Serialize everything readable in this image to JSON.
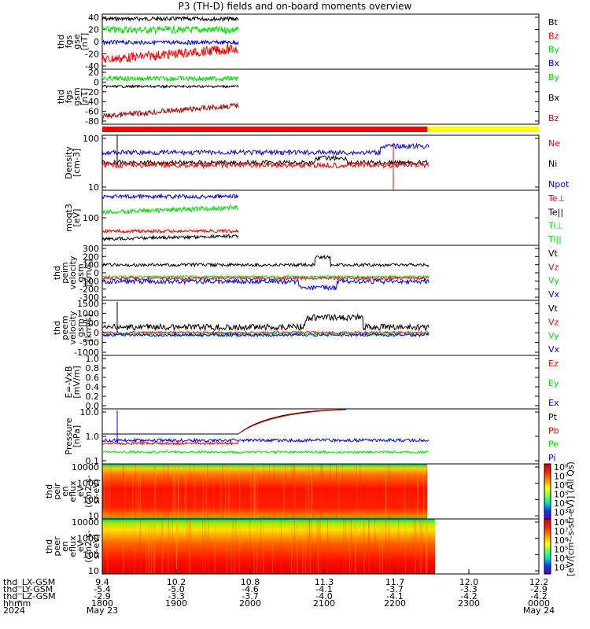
{
  "title": "P3 (TH-D) fields and on-board moments overview",
  "colors": {
    "black": "#000000",
    "red": "#ff0000",
    "darkred": "#a01010",
    "green": "#00e000",
    "blue": "#0000ff",
    "yellow": "#ffff00",
    "bar_red": "#ff0000"
  },
  "chart_data": [
    {
      "type": "line",
      "name": "fgs_gse",
      "ylabel": [
        "thd",
        "fgs",
        "gse",
        "[nT]"
      ],
      "yticks": [
        "40",
        "20",
        "0",
        "-20",
        "-40"
      ],
      "series": [
        {
          "name": "Bt",
          "color": "black",
          "values": [
            40,
            38,
            37,
            36,
            38,
            40
          ]
        },
        {
          "name": "Bz",
          "color": "red",
          "values": [
            -20,
            -28,
            -25,
            -18,
            -10,
            -2
          ]
        },
        {
          "name": "By",
          "color": "green",
          "values": [
            22,
            25,
            20,
            15,
            20,
            25
          ]
        },
        {
          "name": "Bx",
          "color": "blue",
          "values": [
            2,
            3,
            5,
            3,
            4,
            5
          ]
        }
      ],
      "legend": [
        {
          "t": "Bt",
          "c": "black"
        },
        {
          "t": "Bz",
          "c": "red"
        },
        {
          "t": "By",
          "c": "green"
        },
        {
          "t": "Bx",
          "c": "blue"
        }
      ]
    },
    {
      "type": "line",
      "name": "fgs_gsm",
      "ylabel": [
        "thd",
        "fgs",
        "gsm",
        "[nT]"
      ],
      "yticks": [
        "20",
        "0",
        "-20",
        "-40",
        "-60",
        "-80"
      ],
      "series": [
        {
          "name": "By",
          "color": "green",
          "values": [
            15,
            12,
            14,
            16,
            18
          ]
        },
        {
          "name": "Bx",
          "color": "black",
          "values": [
            2,
            1,
            0,
            2,
            3
          ]
        },
        {
          "name": "Bz",
          "color": "darkred",
          "values": [
            -82,
            -80,
            -78,
            -72,
            -62
          ]
        }
      ],
      "legend": [
        {
          "t": "By",
          "c": "green"
        },
        {
          "t": "Bx",
          "c": "black"
        },
        {
          "t": "Bz",
          "c": "darkred"
        }
      ]
    },
    {
      "type": "line",
      "name": "density",
      "ylabel": [
        "Density",
        "[cm-3]"
      ],
      "yticks": [
        "100",
        "10"
      ],
      "series": [
        {
          "name": "Ne",
          "color": "red"
        },
        {
          "name": "Ni",
          "color": "black"
        },
        {
          "name": "Npot",
          "color": "blue"
        }
      ],
      "legend": [
        {
          "t": "Ne",
          "c": "red"
        },
        {
          "t": "Ni",
          "c": "black"
        },
        {
          "t": "Npot",
          "c": "blue"
        }
      ]
    },
    {
      "type": "line",
      "name": "temperature",
      "ylabel": [
        "moqt3",
        "[eV]"
      ],
      "yticks": [
        "100"
      ],
      "legend": [
        {
          "t": "Te⊥",
          "c": "red"
        },
        {
          "t": "Te||",
          "c": "black"
        },
        {
          "t": "Ti⊥",
          "c": "green"
        },
        {
          "t": "Ti||",
          "c": "green"
        }
      ]
    },
    {
      "type": "line",
      "name": "peim_velocity",
      "ylabel": [
        "thd",
        "peim",
        "velocity",
        "gsm",
        "[km/s]"
      ],
      "yticks": [
        "300",
        "200",
        "100",
        "0",
        "-100",
        "-200",
        "-300"
      ],
      "legend": [
        {
          "t": "Vt",
          "c": "black"
        },
        {
          "t": "Vz",
          "c": "red"
        },
        {
          "t": "Vy",
          "c": "green"
        },
        {
          "t": "Vx",
          "c": "blue"
        }
      ]
    },
    {
      "type": "line",
      "name": "peem_velocity",
      "ylabel": [
        "thd",
        "peem",
        "velocity",
        "gsm",
        "[km/s]"
      ],
      "yticks": [
        "1500",
        "1000",
        "500",
        "0",
        "-500",
        "-1000"
      ],
      "legend": [
        {
          "t": "Vt",
          "c": "black"
        },
        {
          "t": "Vz",
          "c": "red"
        },
        {
          "t": "Vy",
          "c": "green"
        },
        {
          "t": "Vx",
          "c": "blue"
        }
      ]
    },
    {
      "type": "line",
      "name": "efield",
      "ylabel": [
        "E=-VxB",
        "[mV/m]"
      ],
      "yticks": [
        "1.0",
        "0.8",
        "0.6",
        "0.4",
        "0.2",
        "0.0"
      ],
      "legend": [
        {
          "t": "Ez",
          "c": "red"
        },
        {
          "t": "Ey",
          "c": "green"
        },
        {
          "t": "Ex",
          "c": "blue"
        }
      ]
    },
    {
      "type": "line",
      "name": "pressure",
      "ylabel": [
        "Pressure",
        "[nPa]"
      ],
      "yticks": [
        "10.0",
        "1.0",
        "0.1"
      ],
      "legend": [
        {
          "t": "Pt",
          "c": "black"
        },
        {
          "t": "Pb",
          "c": "red"
        },
        {
          "t": "Pe",
          "c": "green"
        },
        {
          "t": "Pi",
          "c": "blue"
        }
      ]
    },
    {
      "type": "heatmap",
      "name": "peir_eflux",
      "ylabel": [
        "thd",
        "peir",
        "en",
        "eflux",
        "eV",
        "(cm2-s-",
        "sr-eV)"
      ],
      "yticks": [
        "10000",
        "1000",
        "100",
        "10"
      ]
    },
    {
      "type": "heatmap",
      "name": "peer_eflux",
      "ylabel": [
        "thd",
        "peer",
        "en",
        "eflux",
        "eV",
        "(cm2-s-",
        "sr-eV)"
      ],
      "yticks": [
        "10000",
        "1000",
        "100",
        "10"
      ]
    }
  ],
  "colorbar": {
    "ticks": [
      "10⁸",
      "10⁷",
      "10⁶",
      "10⁵",
      "10⁴",
      "10³"
    ],
    "label": "[eV/(cm²-s-str-eV)] (All Qs)"
  },
  "xaxis": {
    "rows": [
      {
        "label": "thd_LX-GSM",
        "values": [
          "9.4",
          "10.2",
          "10.8",
          "11.3",
          "11.7",
          "12.0",
          "12.2"
        ]
      },
      {
        "label": "thd_LY-GSM",
        "values": [
          "-5.4",
          "-5.0",
          "-4.6",
          "-4.1",
          "-3.7",
          "-3.3",
          "-2.9"
        ]
      },
      {
        "label": "thd_LZ-GSM",
        "values": [
          "-2.9",
          "-3.3",
          "-3.7",
          "-4.0",
          "-4.1",
          "-4.2",
          "-4.2"
        ]
      },
      {
        "label": "hhmm",
        "values": [
          "1800",
          "1900",
          "2000",
          "2100",
          "2200",
          "2300",
          "0000"
        ]
      },
      {
        "label": "2024",
        "values": [
          "May 23",
          "",
          "",
          "",
          "",
          "",
          "May 24"
        ]
      }
    ]
  }
}
